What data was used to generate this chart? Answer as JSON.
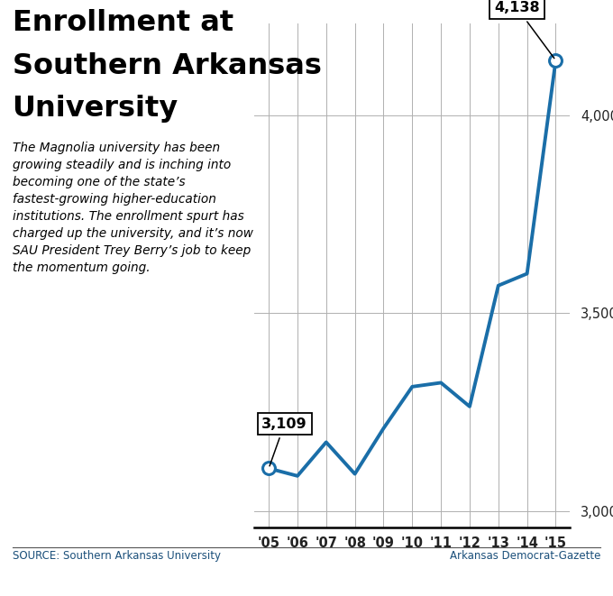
{
  "years": [
    "'05",
    "'06",
    "'07",
    "'08",
    "'09",
    "'10",
    "'11",
    "'12",
    "'13",
    "'14",
    "'15"
  ],
  "values": [
    3109,
    3090,
    3175,
    3095,
    3210,
    3315,
    3325,
    3265,
    3570,
    3600,
    4138
  ],
  "line_color": "#1a6ea8",
  "line_width": 2.8,
  "title_line1": "Enrollment at",
  "title_line2": "Southern Arkansas",
  "title_line3": "University",
  "subtitle": "The Magnolia university has been\ngrowing steadily and is inching into\nbecoming one of the state’s\nfastest-growing higher-education\ninstitutions. The enrollment spurt has\ncharged up the university, and it’s now\nSAU President Trey Berry’s job to keep\nthe momentum going.",
  "source_left": "SOURCE: Southern Arkansas University",
  "source_right": "Arkansas Democrat-Gazette",
  "ylim_min": 2960,
  "ylim_max": 4230,
  "yticks": [
    3000,
    3500,
    4000
  ],
  "annotation_first_label": "3,109",
  "annotation_last_label": "4,138",
  "bg_color": "#ffffff",
  "grid_color": "#b0b0b0",
  "axis_color": "#000000",
  "tick_color": "#222222",
  "source_color": "#1a4f7a",
  "title_fontsize": 23,
  "subtitle_fontsize": 9.8
}
